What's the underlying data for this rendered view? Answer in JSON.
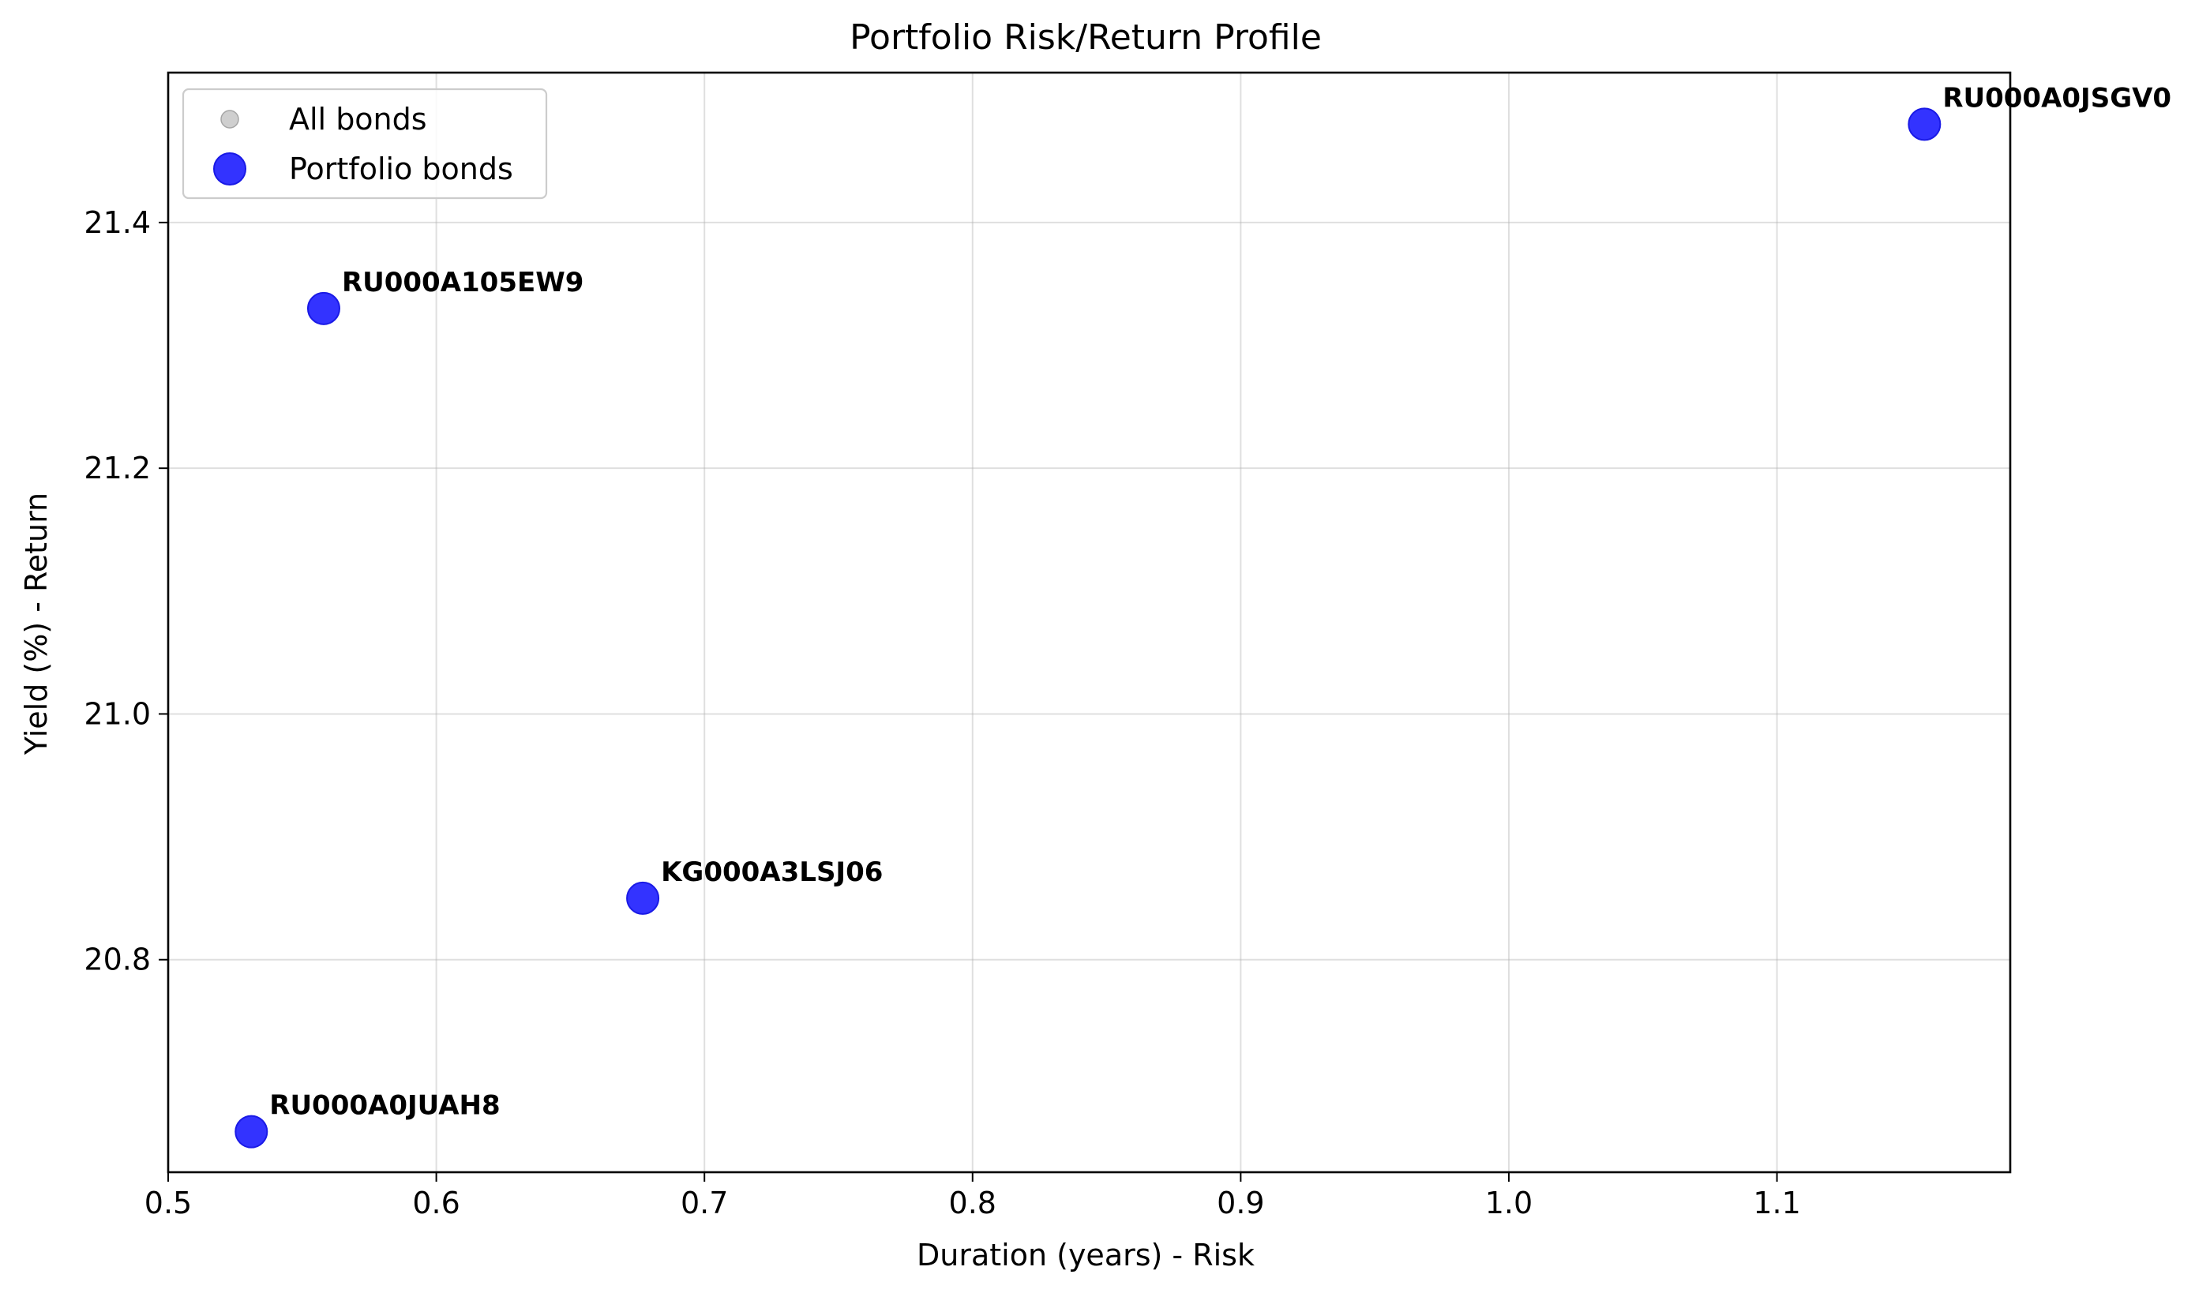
{
  "chart_data": {
    "type": "scatter",
    "title": "Portfolio Risk/Return Profile",
    "xlabel": "Duration (years) - Risk",
    "ylabel": "Yield (%) - Return",
    "xlim": [
      0.5,
      1.187
    ],
    "ylim": [
      20.627,
      21.522
    ],
    "x_ticks": [
      0.5,
      0.6,
      0.7,
      0.8,
      0.9,
      1.0,
      1.1
    ],
    "x_tick_labels": [
      "0.5",
      "0.6",
      "0.7",
      "0.8",
      "0.9",
      "1.0",
      "1.1"
    ],
    "y_ticks": [
      20.8,
      21.0,
      21.2,
      21.4
    ],
    "y_tick_labels": [
      "20.8",
      "21.0",
      "21.2",
      "21.4"
    ],
    "grid": true,
    "legend_position": "top-left",
    "legend": [
      {
        "label": "All bonds",
        "color": "#bfbfbf"
      },
      {
        "label": "Portfolio bonds",
        "color": "#0000ff"
      }
    ],
    "series": [
      {
        "name": "All bonds",
        "color": "#bfbfbf",
        "points": []
      },
      {
        "name": "Portfolio bonds",
        "color": "#0000ff",
        "points": [
          {
            "label": "RU000A0JSGV0",
            "x": 1.155,
            "y": 21.48
          },
          {
            "label": "RU000A105EW9",
            "x": 0.558,
            "y": 21.33
          },
          {
            "label": "KG000A3LSJ06",
            "x": 0.677,
            "y": 20.85
          },
          {
            "label": "RU000A0JUAH8",
            "x": 0.531,
            "y": 20.66
          }
        ]
      }
    ]
  }
}
